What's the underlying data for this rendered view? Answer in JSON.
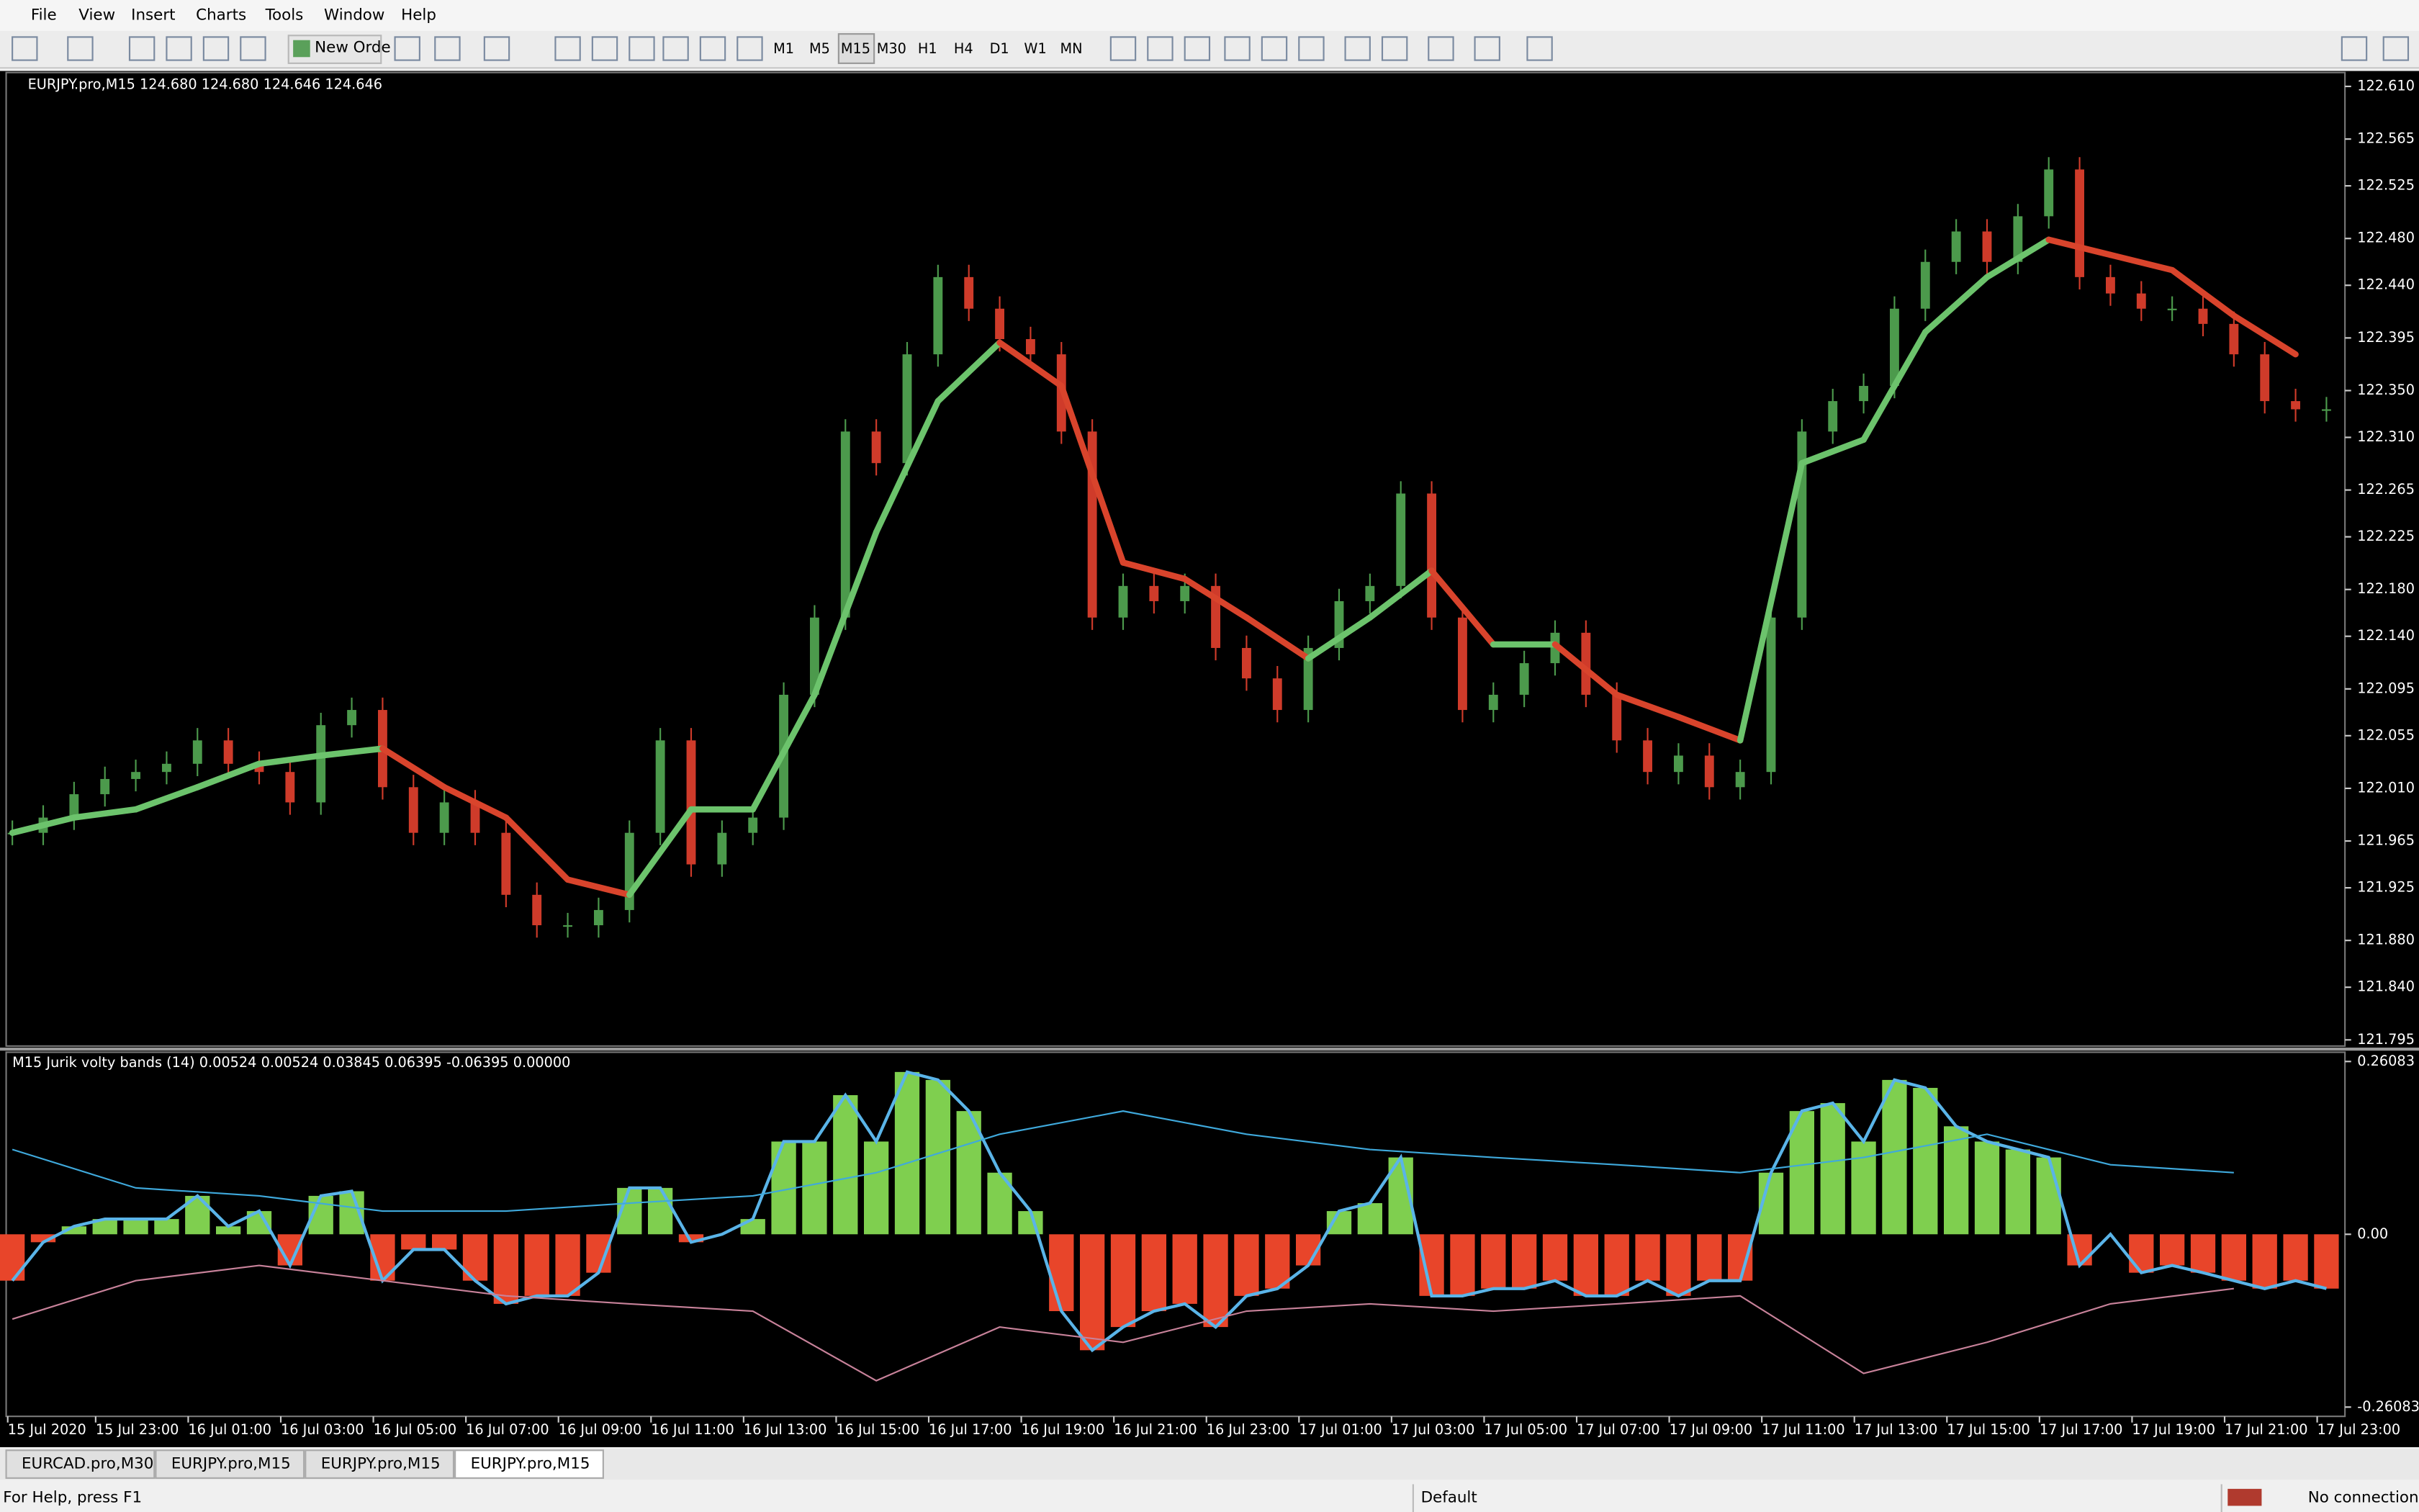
{
  "menu": [
    "File",
    "View",
    "Insert",
    "Charts",
    "Tools",
    "Window",
    "Help"
  ],
  "toolbar": {
    "new_order": "New Orde",
    "timeframes": [
      "M1",
      "M5",
      "M15",
      "M30",
      "H1",
      "H4",
      "D1",
      "W1",
      "MN"
    ]
  },
  "chart_data": [
    {
      "type": "candlestick",
      "title": "EURJPY.pro,M15  124.680 124.680 124.646 124.646",
      "ylim": [
        121.795,
        122.61
      ],
      "yticks": [
        {
          "value": 122.61,
          "label": "122.610"
        },
        122.565,
        122.525,
        {
          "value": 122.48,
          "label": "122.480"
        },
        {
          "value": 122.44,
          "label": "122.440"
        },
        122.395,
        {
          "value": 122.35,
          "label": "122.350"
        },
        {
          "value": 122.31,
          "label": "122.310"
        },
        122.265,
        122.225,
        {
          "value": 122.18,
          "label": "122.180"
        },
        {
          "value": 122.14,
          "label": "122.140"
        },
        122.095,
        122.055,
        {
          "value": 122.01,
          "label": "122.010"
        },
        121.965,
        121.925,
        {
          "value": 121.88,
          "label": "121.880"
        },
        {
          "value": 121.84,
          "label": "121.840"
        },
        121.795
      ],
      "xticks": [
        "15 Jul 2020",
        "15 Jul 23:00",
        "16 Jul 01:00",
        "16 Jul 03:00",
        "16 Jul 05:00",
        "16 Jul 07:00",
        "16 Jul 09:00",
        "16 Jul 11:00",
        "16 Jul 13:00",
        "16 Jul 15:00",
        "16 Jul 17:00",
        "16 Jul 19:00",
        "16 Jul 21:00",
        "16 Jul 23:00",
        "17 Jul 01:00",
        "17 Jul 03:00",
        "17 Jul 05:00",
        "17 Jul 07:00",
        "17 Jul 09:00",
        "17 Jul 11:00",
        "17 Jul 13:00",
        "17 Jul 15:00",
        "17 Jul 17:00",
        "17 Jul 19:00",
        "17 Jul 21:00",
        "17 Jul 23:00"
      ],
      "up_color": "#4c9a4c",
      "down_color": "#cf3b2a",
      "series": [
        {
          "type": "candles",
          "values": [
            121.972,
            121.985,
            122.005,
            122.018,
            122.024,
            122.031,
            122.051,
            122.031,
            122.024,
            121.998,
            122.064,
            122.077,
            122.011,
            121.972,
            121.998,
            121.972,
            121.919,
            121.893,
            121.893,
            121.906,
            121.972,
            122.051,
            121.945,
            121.972,
            121.985,
            122.09,
            122.156,
            122.315,
            122.288,
            122.381,
            122.447,
            122.42,
            122.394,
            122.381,
            122.315,
            122.156,
            122.183,
            122.17,
            122.183,
            122.13,
            122.104,
            122.077,
            122.13,
            122.17,
            122.183,
            122.262,
            122.156,
            122.077,
            122.09,
            122.117,
            122.143,
            122.09,
            122.051,
            122.024,
            122.038,
            122.011,
            122.024,
            122.156,
            122.315,
            122.341,
            122.354,
            122.42,
            122.46,
            122.486,
            122.46,
            122.499,
            122.539,
            122.447,
            122.433,
            122.42,
            122.42,
            122.407,
            122.381,
            122.341,
            122.334,
            122.334
          ]
        },
        {
          "type": "line",
          "up_color": "#6cc36c",
          "down_color": "#d9442c",
          "values": [
            121.972,
            121.985,
            121.992,
            122.011,
            122.031,
            122.038,
            122.044,
            122.011,
            121.985,
            121.932,
            121.919,
            121.992,
            121.992,
            122.09,
            122.229,
            122.341,
            122.391,
            122.354,
            122.203,
            122.189,
            122.156,
            122.121,
            122.156,
            122.196,
            122.133,
            122.133,
            122.09,
            122.071,
            122.051,
            122.288,
            122.308,
            122.4,
            122.447,
            122.479,
            122.466,
            122.453,
            122.414,
            122.381
          ]
        }
      ]
    },
    {
      "type": "histogram",
      "title": "M15 Jurik volty bands (14) 0.00524 0.00524 0.03845 0.06395 -0.06395 0.00000",
      "ylim": [
        -0.26083,
        0.26083
      ],
      "yticks": [
        0.26083,
        {
          "value": 0,
          "label": "0.00"
        },
        -0.26083
      ],
      "up_color": "#7fcf4f",
      "down_color": "#e8452a",
      "line_color": "#5ab4e8",
      "series": [
        {
          "type": "bars",
          "values": [
            -0.07,
            -0.012,
            0.012,
            0.023,
            0.023,
            0.023,
            0.058,
            0.012,
            0.035,
            -0.047,
            0.058,
            0.065,
            -0.07,
            -0.023,
            -0.023,
            -0.07,
            -0.105,
            -0.093,
            -0.093,
            -0.058,
            0.07,
            0.07,
            -0.012,
            0,
            0.023,
            0.14,
            0.14,
            0.21,
            0.14,
            0.245,
            0.233,
            0.186,
            0.093,
            0.035,
            -0.116,
            -0.175,
            -0.14,
            -0.116,
            -0.105,
            -0.14,
            -0.093,
            -0.082,
            -0.047,
            0.035,
            0.047,
            0.116,
            -0.093,
            -0.093,
            -0.082,
            -0.082,
            -0.07,
            -0.093,
            -0.093,
            -0.07,
            -0.093,
            -0.07,
            -0.07,
            0.093,
            0.186,
            0.198,
            0.14,
            0.233,
            0.221,
            0.163,
            0.14,
            0.128,
            0.116,
            -0.047,
            0,
            -0.058,
            -0.047,
            -0.058,
            -0.07,
            -0.082,
            -0.07,
            -0.082
          ]
        },
        {
          "type": "band",
          "color": "#3fa9dc",
          "values": [
            0.128,
            0.07,
            0.058,
            0.035,
            0.035,
            0.047,
            0.058,
            0.093,
            0.151,
            0.186,
            0.151,
            0.128,
            0.116,
            0.105,
            0.093,
            0.116,
            0.151,
            0.105,
            0.093
          ]
        },
        {
          "type": "band",
          "color": "#c8829a",
          "values": [
            -0.128,
            -0.07,
            -0.047,
            -0.07,
            -0.093,
            -0.105,
            -0.116,
            -0.221,
            -0.14,
            -0.163,
            -0.116,
            -0.105,
            -0.116,
            -0.105,
            -0.093,
            -0.21,
            -0.163,
            -0.105,
            -0.082
          ]
        }
      ]
    }
  ],
  "tabs": [
    "EURCAD.pro,M30",
    "EURJPY.pro,M15",
    "EURJPY.pro,M15",
    "EURJPY.pro,M15"
  ],
  "status": {
    "help": "For Help, press F1",
    "profile": "Default",
    "connection": "No connection"
  }
}
